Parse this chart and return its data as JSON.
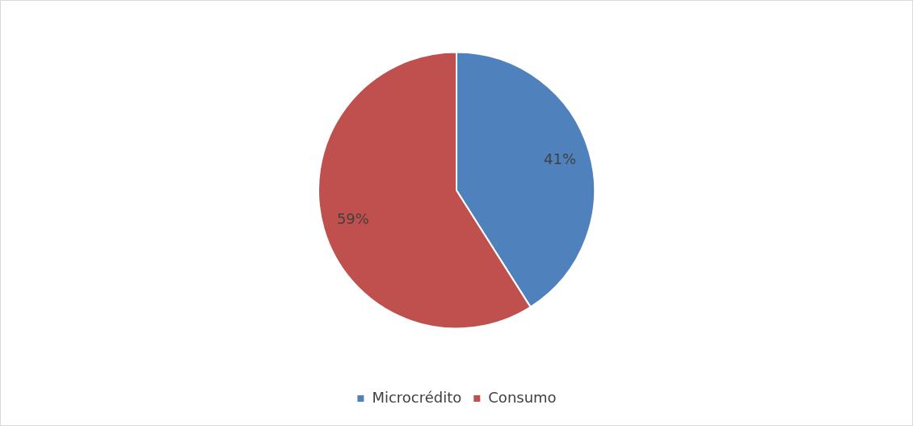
{
  "chart_data": {
    "type": "pie",
    "categories": [
      "Microcrédito",
      "Consumo"
    ],
    "values": [
      41,
      59
    ],
    "colors": [
      "#4f81bd",
      "#c0504d"
    ],
    "value_labels": [
      "41%",
      "59%"
    ],
    "legend": "bottom"
  }
}
